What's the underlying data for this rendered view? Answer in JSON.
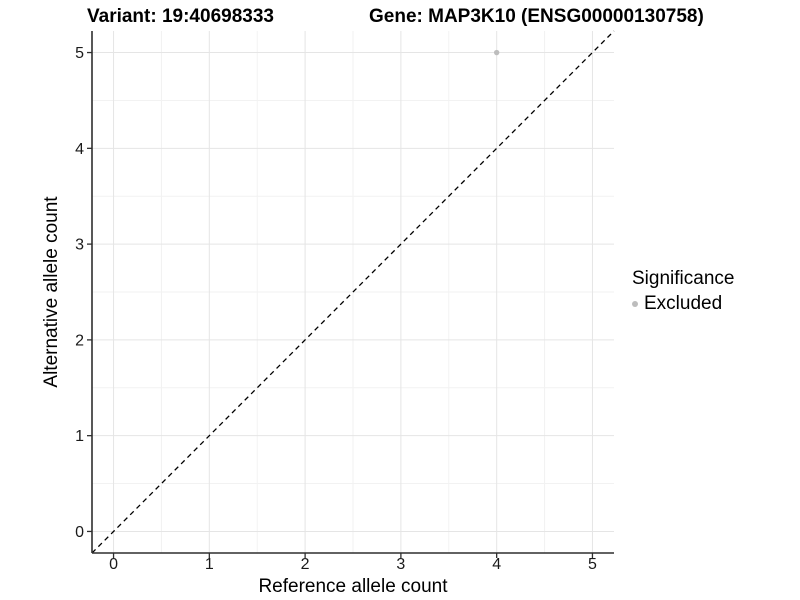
{
  "header": {
    "variant_title": "Variant: 19:40698333",
    "gene_title": "Gene: MAP3K10 (ENSG00000130758)"
  },
  "legend": {
    "title": "Significance",
    "items": [
      {
        "label": "Excluded",
        "color": "#bdbdbd"
      }
    ]
  },
  "chart_data": {
    "type": "scatter",
    "title": "Variant: 19:40698333 — Gene: MAP3K10 (ENSG00000130758)",
    "xlabel": "Reference allele count",
    "ylabel": "Alternative allele count",
    "points": [
      {
        "x": 4,
        "y": 5,
        "series": "Excluded"
      }
    ],
    "series": [
      {
        "name": "Excluded",
        "color": "#bdbdbd"
      }
    ],
    "xticks": [
      0,
      1,
      2,
      3,
      4,
      5
    ],
    "yticks": [
      0,
      1,
      2,
      3,
      4,
      5
    ],
    "x_minor": [
      0.5,
      1.5,
      2.5,
      3.5,
      4.5
    ],
    "y_minor": [
      0.5,
      1.5,
      2.5,
      3.5,
      4.5
    ],
    "xlim": [
      -0.225,
      5.225
    ],
    "ylim": [
      -0.225,
      5.225
    ],
    "grid": "major+minor",
    "reference_line": {
      "type": "identity",
      "slope": 1,
      "intercept": 0,
      "style": "dashed",
      "color": "#000000"
    },
    "legend_position": "right",
    "point_radius": 2.7,
    "colors": {
      "background": "#ffffff",
      "grid_major": "#e5e5e5",
      "grid_minor": "#f2f2f2",
      "axis_line": "#2e2e2e",
      "tick_label": "#1a1a1a",
      "point": "#bdbdbd"
    }
  }
}
